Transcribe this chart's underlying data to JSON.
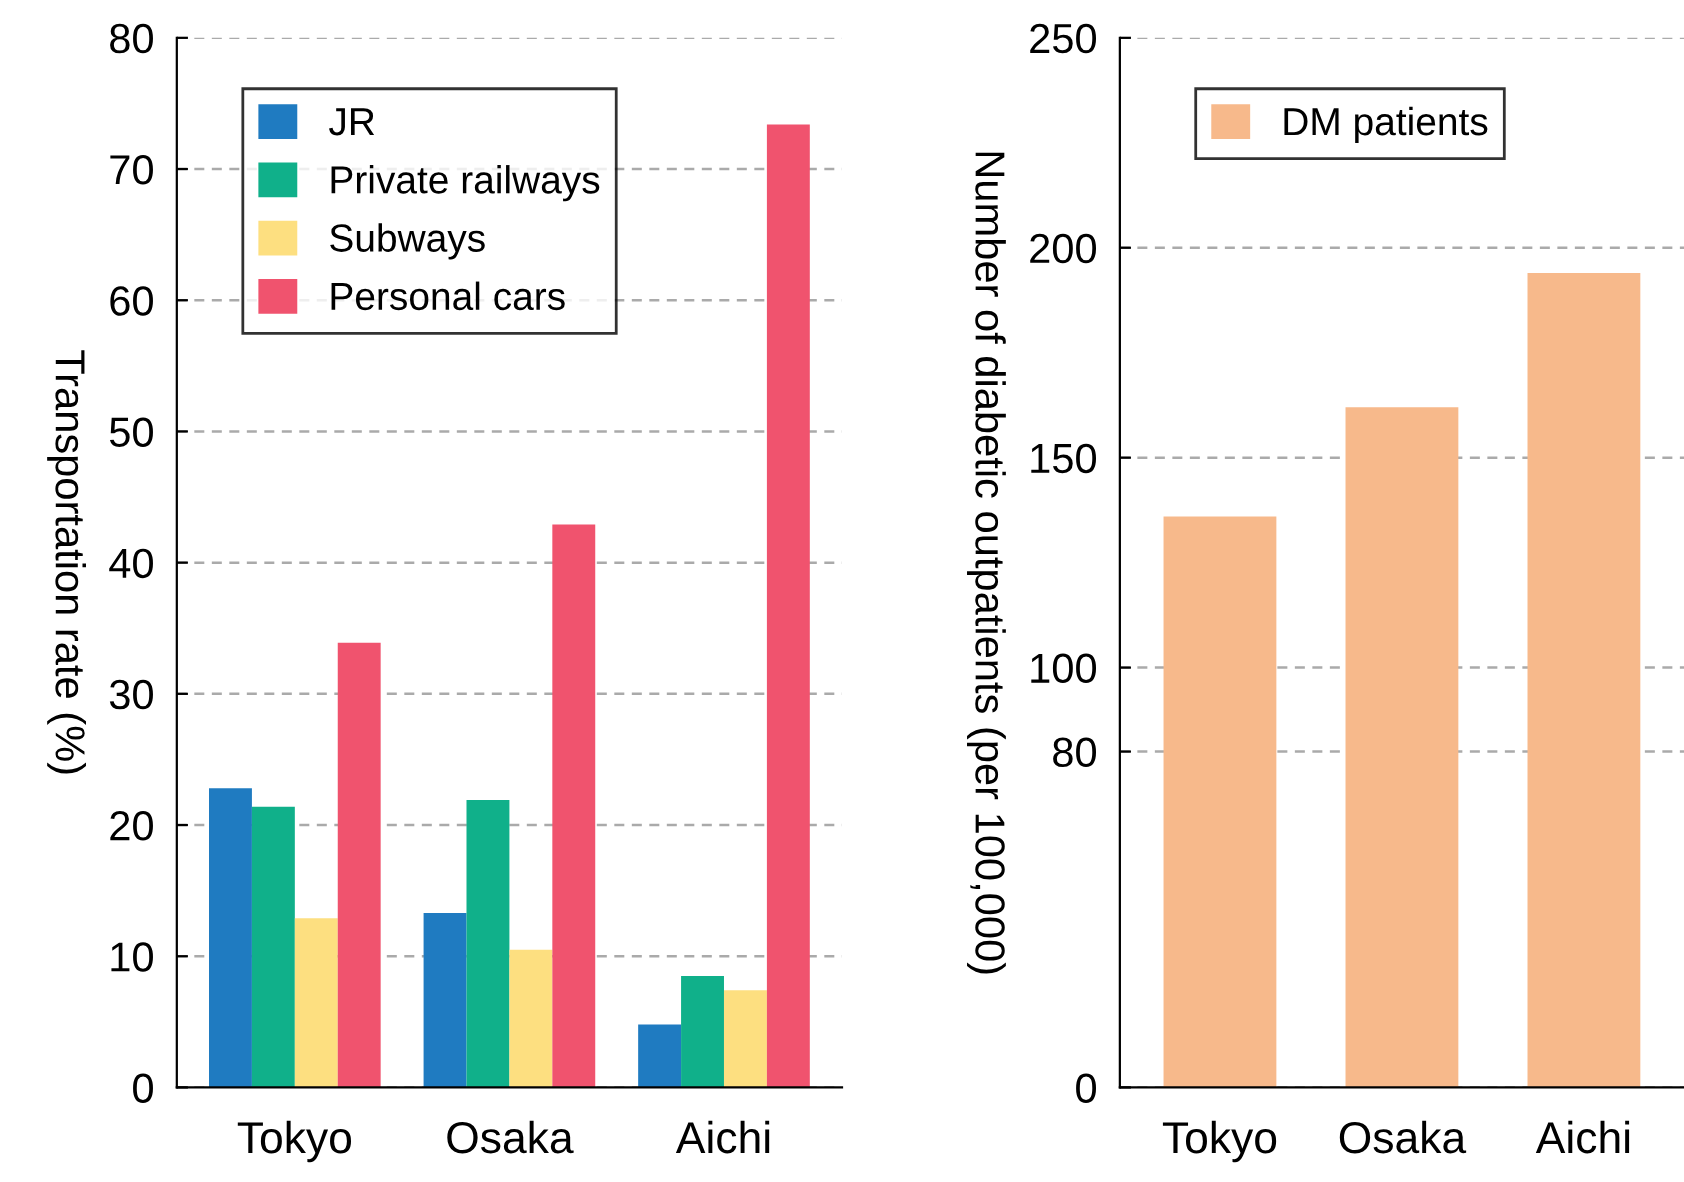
{
  "chart_data": [
    {
      "type": "bar",
      "ylabel": "Transportation rate (%)",
      "categories": [
        "Tokyo",
        "Osaka",
        "Aichi"
      ],
      "series": [
        {
          "name": "JR",
          "color": "#1f7bc1",
          "values": [
            22.8,
            13.3,
            4.8
          ]
        },
        {
          "name": "Private railways",
          "color": "#10b08a",
          "values": [
            21.4,
            21.9,
            8.5
          ]
        },
        {
          "name": "Subways",
          "color": "#fddf80",
          "values": [
            12.9,
            10.5,
            7.4
          ]
        },
        {
          "name": "Personal cars",
          "color": "#f0536e",
          "values": [
            33.9,
            42.9,
            73.4
          ]
        }
      ],
      "ylim": [
        0,
        80
      ],
      "yticks": [
        0,
        10,
        20,
        30,
        40,
        50,
        60,
        70,
        80
      ],
      "grid": "y",
      "legend": "top left"
    },
    {
      "type": "bar",
      "ylabel": "Number of diabetic outpatients (per 100,000)",
      "categories": [
        "Tokyo",
        "Osaka",
        "Aichi"
      ],
      "series": [
        {
          "name": "DM patients",
          "color": "#f7b98b",
          "values": [
            136,
            162,
            194
          ]
        }
      ],
      "ylim": [
        0,
        250
      ],
      "yticks": [
        0,
        80,
        100,
        150,
        200,
        250
      ],
      "grid": "y",
      "legend": "top left"
    }
  ]
}
